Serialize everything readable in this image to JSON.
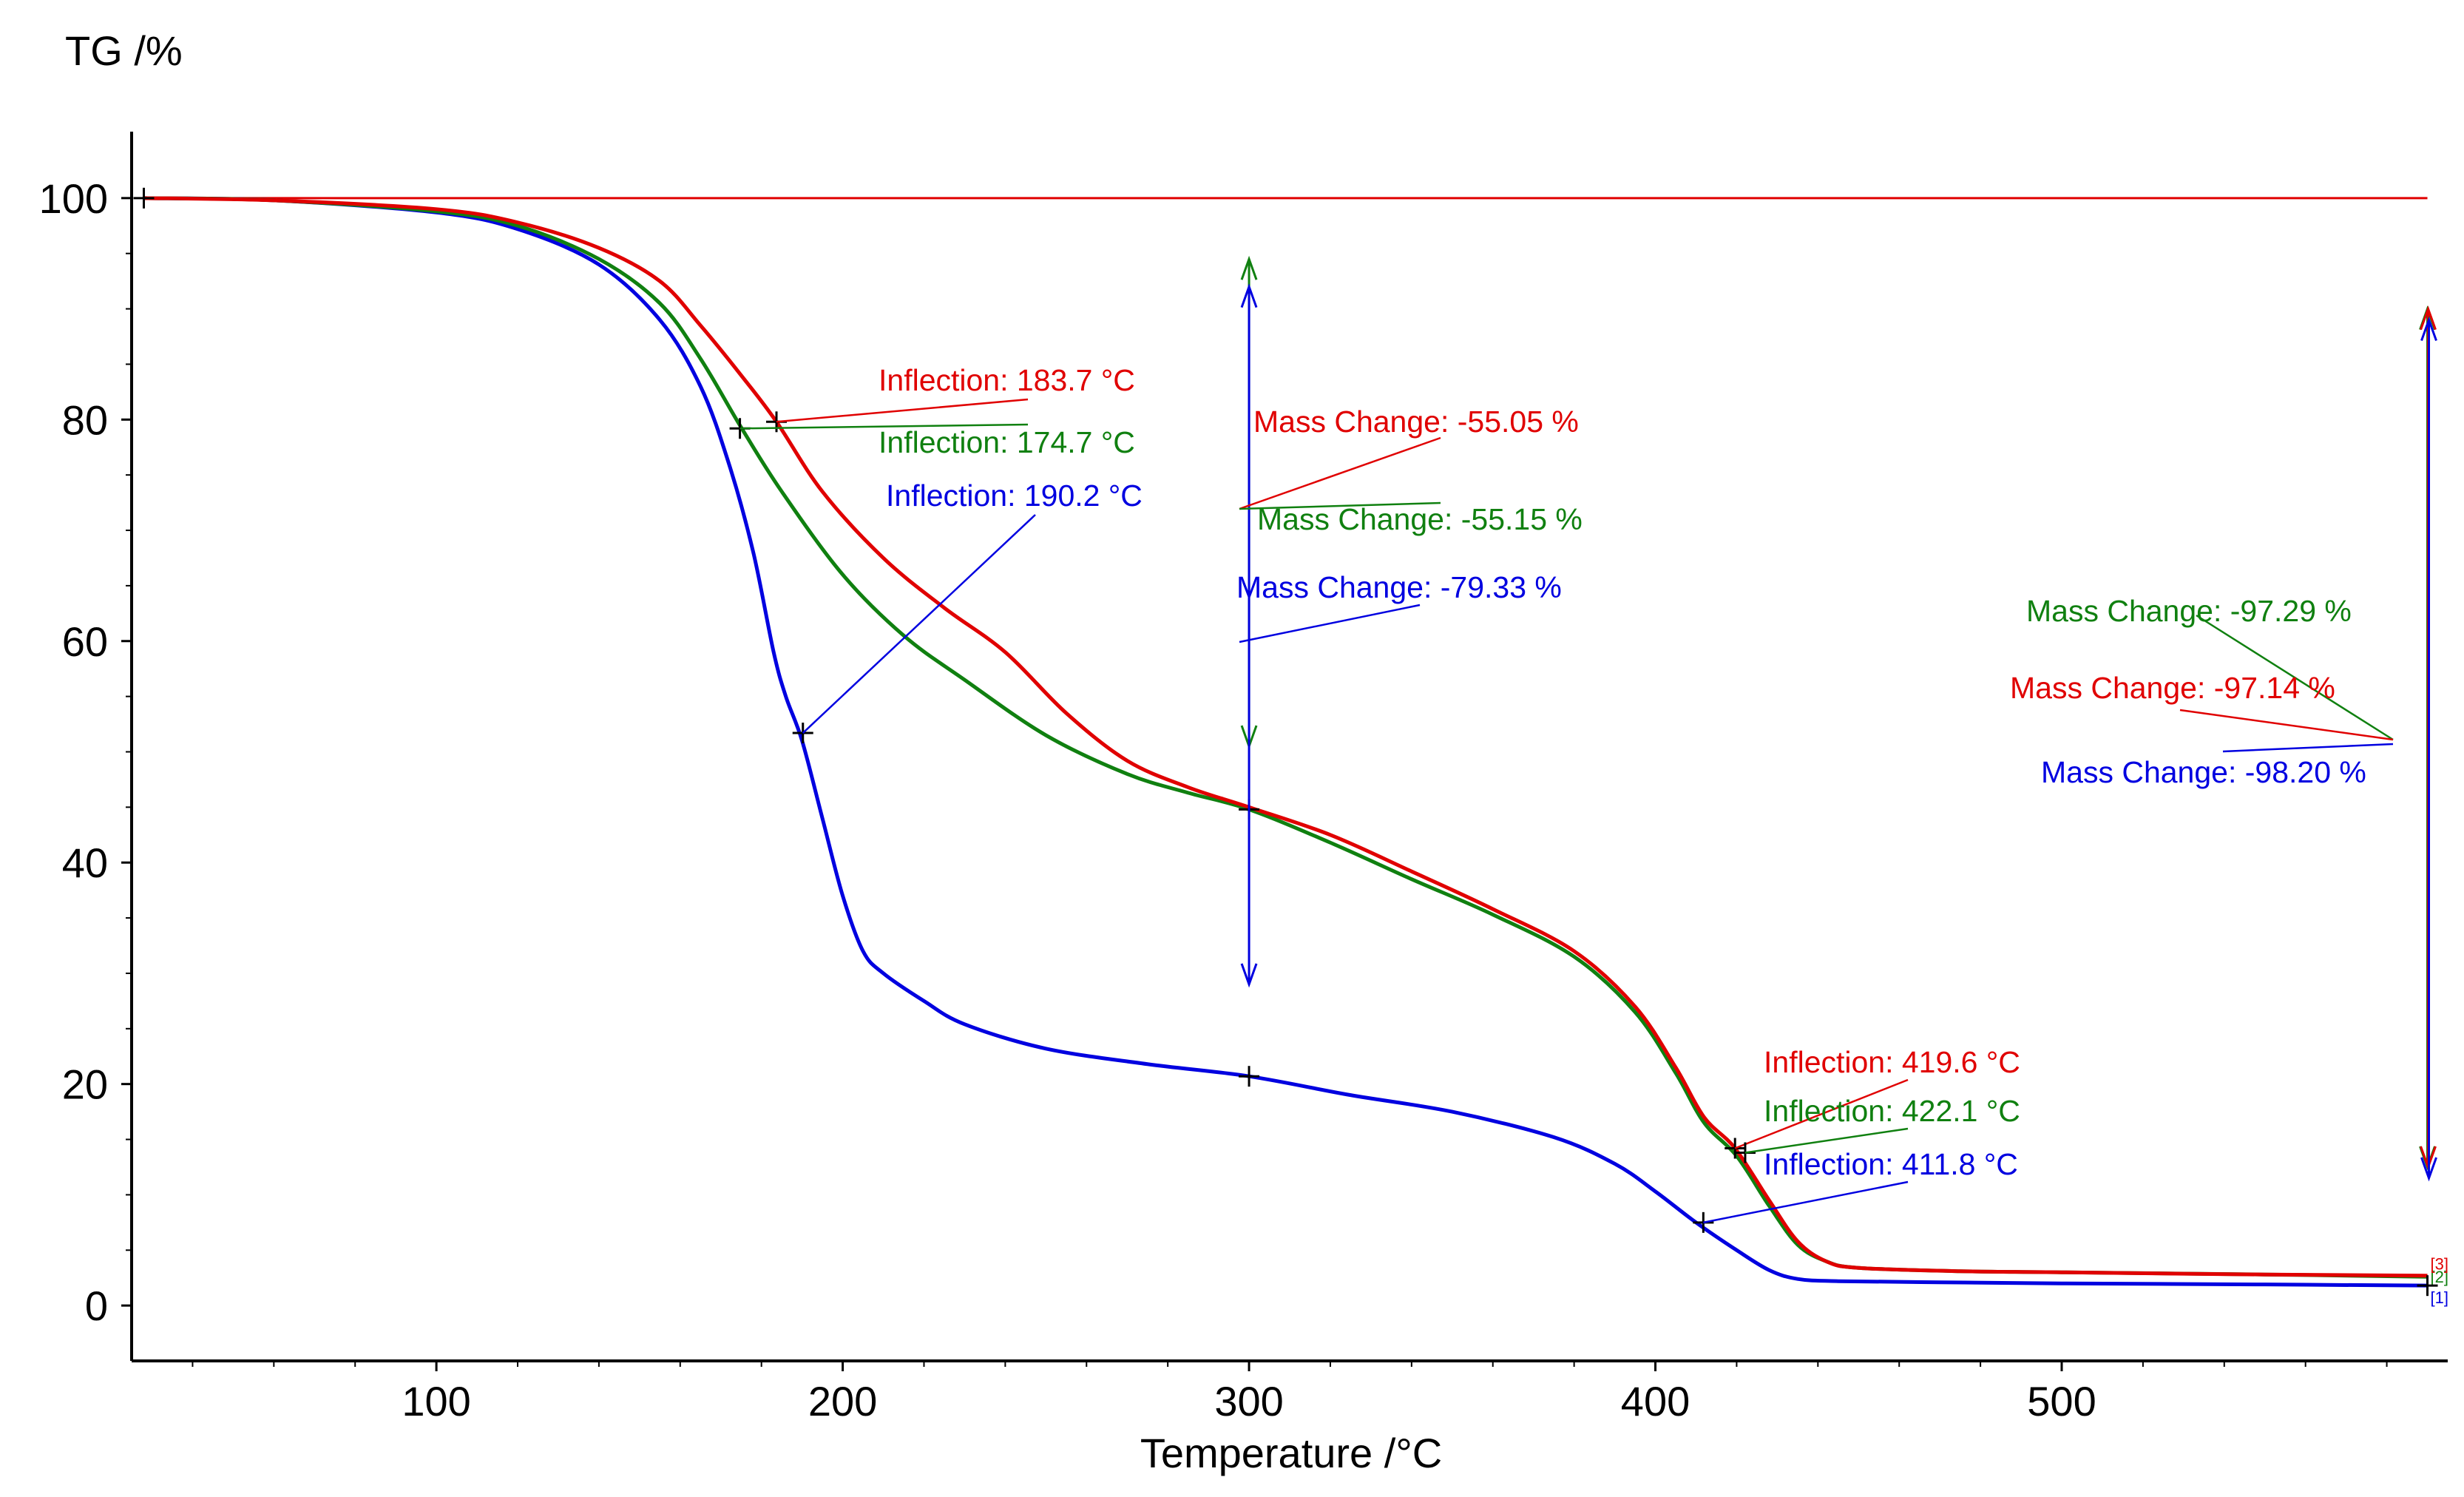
{
  "chart_data": {
    "type": "line",
    "ylabel": "TG /%",
    "xlabel": "Temperature /°C",
    "xlim": [
      25,
      595
    ],
    "ylim": [
      -5,
      106
    ],
    "x_ticks": [
      100,
      200,
      300,
      400,
      500
    ],
    "y_ticks": [
      0,
      20,
      40,
      60,
      80,
      100
    ],
    "x_tick_labels": [
      "100",
      "200",
      "300",
      "400",
      "500"
    ],
    "y_tick_labels": [
      "0",
      "20",
      "40",
      "60",
      "80",
      "100"
    ],
    "grid": false,
    "baseline": {
      "y": 100,
      "color": "#e00000"
    },
    "series": [
      {
        "id": "1",
        "color": "#0000e0",
        "end_label": "[1]",
        "x": [
          28,
          60,
          100,
          120,
          140,
          155,
          165,
          172,
          178,
          183,
          186,
          190,
          195,
          200,
          205,
          210,
          220,
          230,
          250,
          275,
          300,
          325,
          350,
          375,
          390,
          400,
          410,
          420,
          428,
          435,
          445,
          470,
          500,
          550,
          590
        ],
        "y": [
          100,
          99.8,
          98.7,
          97.2,
          94,
          89,
          83,
          76,
          68,
          59,
          55,
          51,
          44,
          37,
          32,
          30,
          27.5,
          25.4,
          23.2,
          21.8,
          20.7,
          19,
          17.5,
          15.2,
          12.8,
          10.3,
          7.5,
          5,
          3.2,
          2.4,
          2.2,
          2.1,
          2,
          1.9,
          1.8
        ]
      },
      {
        "id": "2",
        "color": "#108010",
        "end_label": "[2]",
        "x": [
          28,
          60,
          100,
          120,
          140,
          155,
          165,
          175,
          185,
          200,
          215,
          230,
          250,
          270,
          285,
          300,
          320,
          340,
          360,
          380,
          395,
          405,
          412,
          420,
          428,
          435,
          442,
          450,
          475,
          500,
          550,
          590
        ],
        "y": [
          100,
          99.8,
          98.8,
          97.5,
          94.5,
          90.5,
          85.5,
          79.3,
          73.5,
          66,
          60.5,
          56.5,
          51.5,
          48,
          46.3,
          44.8,
          41.8,
          38.5,
          35.3,
          31.5,
          26.5,
          21,
          16.5,
          13.5,
          9,
          5.5,
          4,
          3.4,
          3.1,
          3,
          2.8,
          2.6
        ]
      },
      {
        "id": "3",
        "color": "#e00000",
        "end_label": "[3]",
        "x": [
          28,
          60,
          100,
          120,
          140,
          155,
          165,
          175,
          183.7,
          195,
          210,
          225,
          240,
          255,
          270,
          285,
          300,
          320,
          340,
          360,
          380,
          395,
          405,
          412,
          419.6,
          428,
          435,
          442,
          450,
          475,
          500,
          550,
          590
        ],
        "y": [
          100,
          99.8,
          99,
          97.8,
          95.5,
          92.5,
          88.5,
          84,
          79.8,
          73.5,
          67.5,
          63,
          59,
          53.5,
          49.2,
          46.8,
          45,
          42.5,
          39.2,
          35.8,
          32,
          27,
          21.5,
          17,
          14.2,
          9.5,
          5.8,
          4,
          3.4,
          3.1,
          3,
          2.8,
          2.7
        ]
      }
    ],
    "inflection_points": [
      {
        "series": "3",
        "x": 183.7,
        "y": 79.8,
        "text": "Inflection: 183.7 °C",
        "color": "#e00000"
      },
      {
        "series": "2",
        "x": 174.7,
        "y": 79.2,
        "text": "Inflection: 174.7 °C",
        "color": "#108010"
      },
      {
        "series": "1",
        "x": 190.2,
        "y": 51.7,
        "text": "Inflection: 190.2 °C",
        "color": "#0000e0"
      },
      {
        "series": "3",
        "x": 419.6,
        "y": 14.2,
        "text": "Inflection: 419.6 °C",
        "color": "#e00000"
      },
      {
        "series": "2",
        "x": 422.1,
        "y": 13.8,
        "text": "Inflection: 422.1 °C",
        "color": "#108010"
      },
      {
        "series": "1",
        "x": 411.8,
        "y": 7.5,
        "text": "Inflection: 411.8 °C",
        "color": "#0000e0"
      }
    ],
    "mass_changes": [
      {
        "series": "3",
        "x": 300,
        "text": "Mass Change: -55.05 %",
        "color": "#e00000"
      },
      {
        "series": "2",
        "x": 300,
        "text": "Mass Change: -55.15 %",
        "color": "#108010"
      },
      {
        "series": "1",
        "x": 300,
        "text": "Mass Change: -79.33 %",
        "color": "#0000e0"
      },
      {
        "series": "2",
        "x": 590,
        "text": "Mass Change: -97.29 %",
        "color": "#108010"
      },
      {
        "series": "3",
        "x": 590,
        "text": "Mass Change: -97.14 %",
        "color": "#e00000"
      },
      {
        "series": "1",
        "x": 590,
        "text": "Mass Change: -98.20 %",
        "color": "#0000e0"
      }
    ],
    "mass_change_arrows": [
      {
        "series": "2",
        "x": 300,
        "y_top": 94.5,
        "y_bottom": 50.5,
        "color": "#108010"
      },
      {
        "series": "1",
        "x": 300,
        "y_top": 92,
        "y_bottom": 29,
        "color": "#0000e0"
      },
      {
        "series": "2",
        "x": 590,
        "y_top": 90,
        "y_bottom": 12.5,
        "color": "#108010"
      },
      {
        "series": "3",
        "x": 590,
        "y_top": 90,
        "y_bottom": 12.5,
        "color": "#e00000"
      },
      {
        "series": "1",
        "x": 590,
        "y_top": 89,
        "y_bottom": 11.5,
        "color": "#0000e0"
      }
    ]
  }
}
